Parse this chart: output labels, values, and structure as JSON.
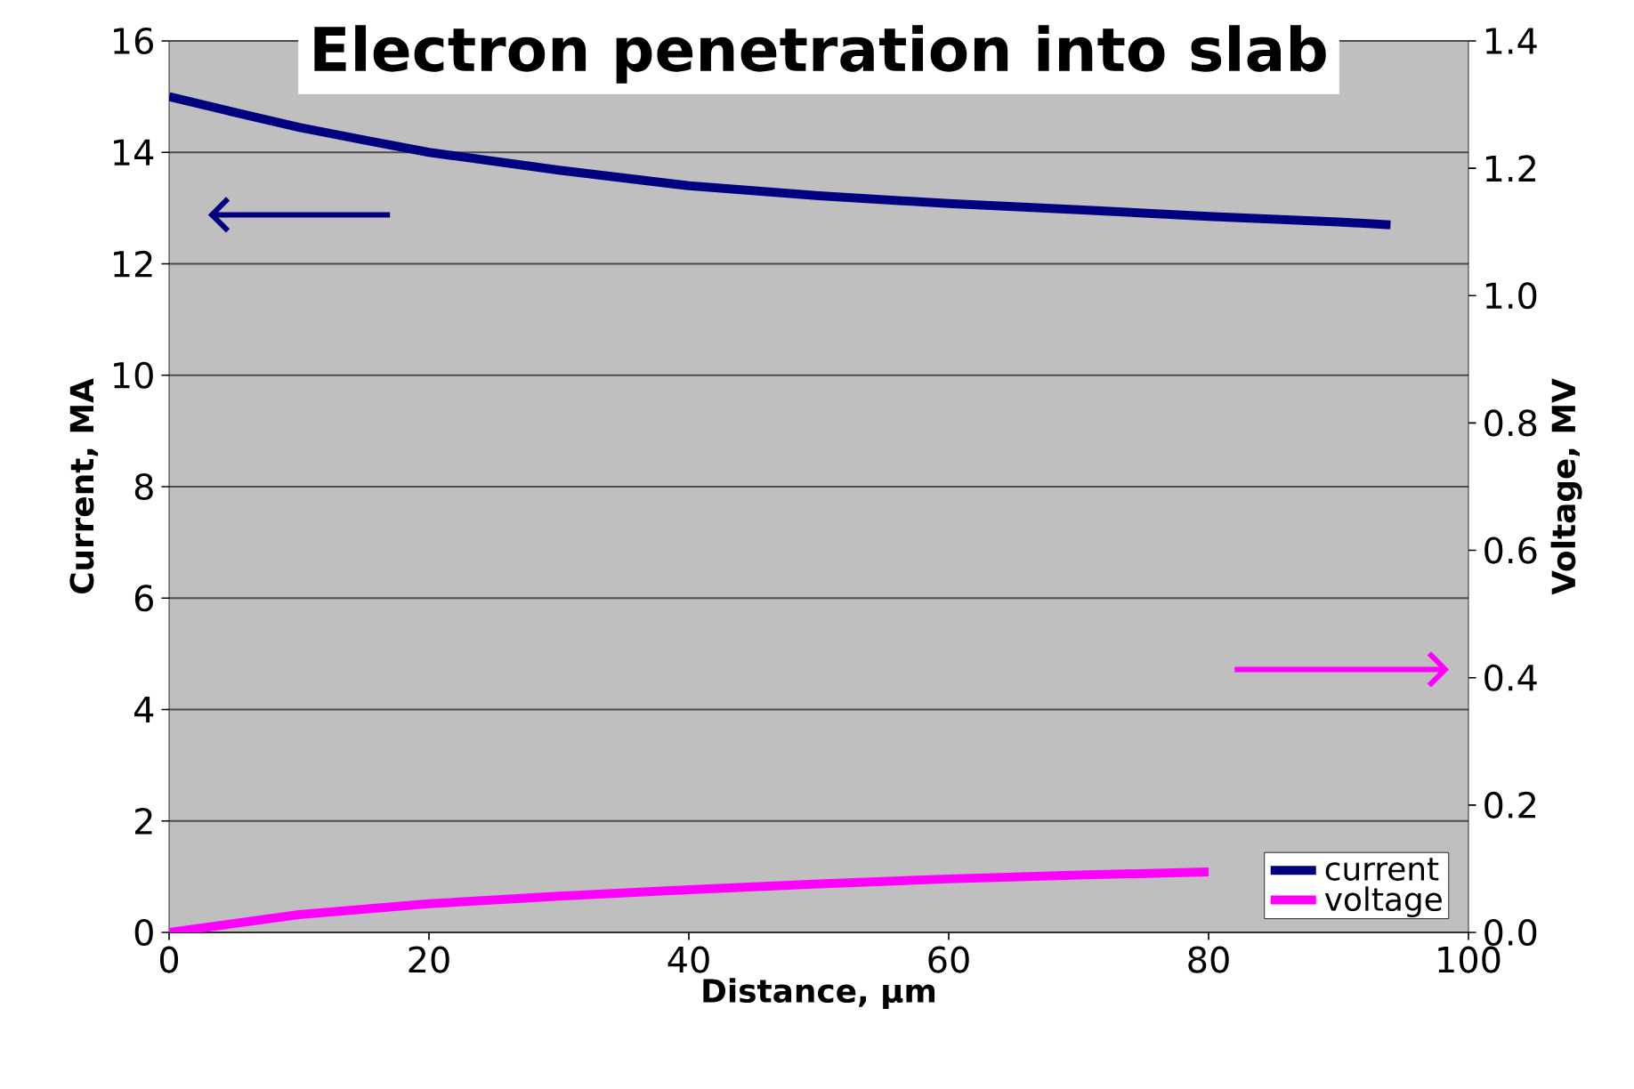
{
  "chart_data": {
    "type": "line",
    "title": "Electron penetration into slab",
    "xlabel": "Distance, µm",
    "ylabel": "Current, MA",
    "y2label": "Voltage, MV",
    "series": [
      {
        "name": "current",
        "color": "#000080",
        "x": [
          0,
          5,
          10,
          15,
          20,
          30,
          40,
          50,
          60,
          70,
          80,
          90,
          94
        ],
        "values": [
          15.0,
          14.72,
          14.45,
          14.22,
          14.0,
          13.68,
          13.4,
          13.22,
          13.08,
          12.97,
          12.85,
          12.75,
          12.7
        ]
      },
      {
        "name": "voltage",
        "color": "#ff00ff",
        "axis": "y2",
        "x": [
          0,
          10,
          20,
          30,
          40,
          50,
          60,
          70,
          80
        ],
        "values": [
          0.0,
          0.028,
          0.045,
          0.057,
          0.067,
          0.076,
          0.084,
          0.09,
          0.095
        ]
      }
    ],
    "xlim": [
      0,
      100
    ],
    "xticks": [
      0,
      20,
      40,
      60,
      80,
      100
    ],
    "ylim": [
      0,
      16
    ],
    "yticks": [
      0,
      2,
      4,
      6,
      8,
      10,
      12,
      14,
      16
    ],
    "y2lim": [
      0,
      1.4
    ],
    "y2ticks": [
      {
        "value": 0,
        "label": "0.0"
      },
      {
        "value": 0.2,
        "label": "0.2"
      },
      {
        "value": 0.4,
        "label": "0.4"
      },
      {
        "value": 0.6,
        "label": "0.6"
      },
      {
        "value": 0.8,
        "label": "0.8"
      },
      {
        "value": 1.0,
        "label": "1.0"
      },
      {
        "value": 1.2,
        "label": "1.2"
      },
      {
        "value": 1.4,
        "label": "1.4"
      }
    ],
    "grid": "y",
    "legend": "bottom right",
    "line_style": "solid",
    "marker": "none"
  }
}
